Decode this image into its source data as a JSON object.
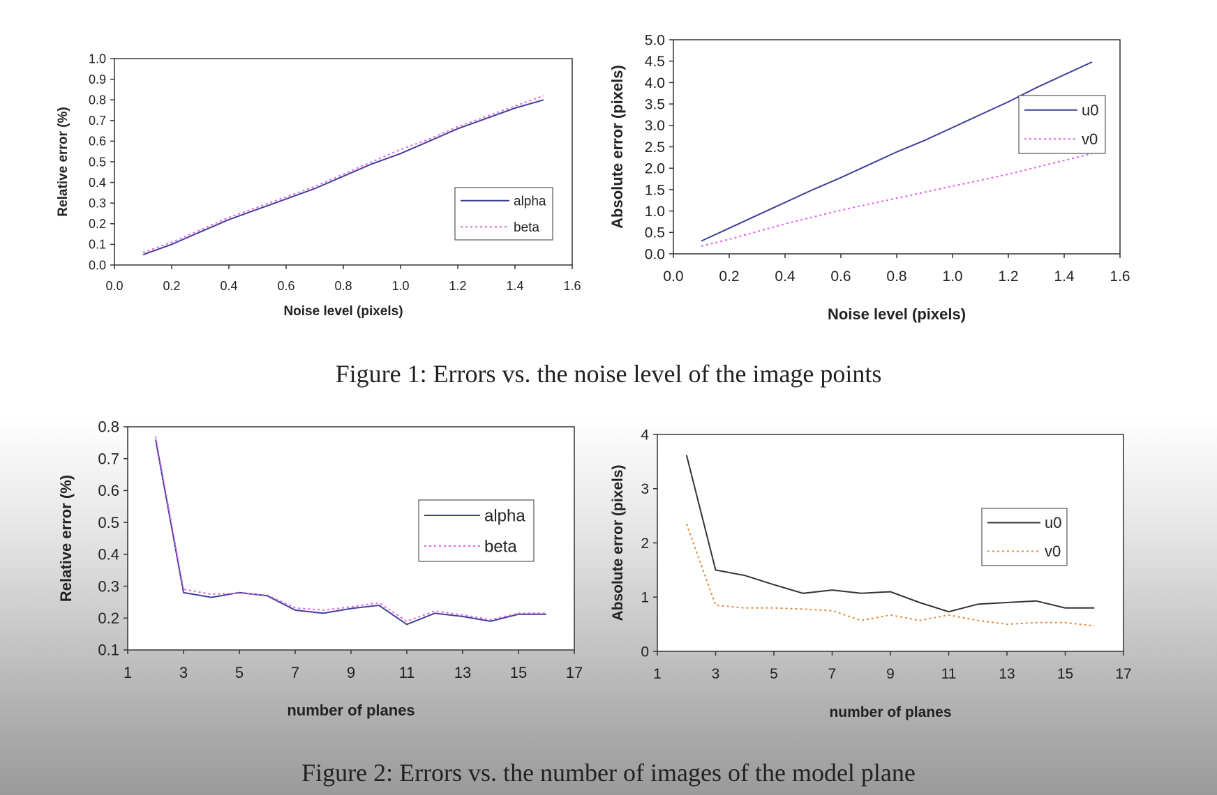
{
  "captions": {
    "figure1": "Figure 1: Errors vs. the noise level of the image points",
    "figure2": "Figure 2: Errors vs. the number of images of the model plane"
  },
  "chart_data": [
    {
      "type": "line",
      "xlabel": "Noise level (pixels)",
      "ylabel": "Relative error (%)",
      "xlim": [
        0,
        1.6
      ],
      "xticks": [
        0.0,
        0.2,
        0.4,
        0.6,
        0.8,
        1.0,
        1.2,
        1.4,
        1.6
      ],
      "xtick_labels": [
        "0.0",
        "0.2",
        "0.4",
        "0.6",
        "0.8",
        "1.0",
        "1.2",
        "1.4",
        "1.6"
      ],
      "ylim": [
        0,
        1.0
      ],
      "yticks": [
        0.0,
        0.1,
        0.2,
        0.3,
        0.4,
        0.5,
        0.6,
        0.7,
        0.8,
        0.9,
        1.0
      ],
      "ytick_labels": [
        "0.0",
        "0.1",
        "0.2",
        "0.3",
        "0.4",
        "0.5",
        "0.6",
        "0.7",
        "0.8",
        "0.9",
        "1.0"
      ],
      "legend": "lower-right",
      "x": [
        0.1,
        0.2,
        0.3,
        0.4,
        0.5,
        0.6,
        0.7,
        0.8,
        0.9,
        1.0,
        1.1,
        1.2,
        1.3,
        1.4,
        1.5
      ],
      "series": [
        {
          "name": "alpha",
          "color": "#3f3f9a",
          "dash": "solid",
          "values": [
            0.05,
            0.1,
            0.16,
            0.22,
            0.27,
            0.32,
            0.37,
            0.43,
            0.49,
            0.54,
            0.6,
            0.66,
            0.71,
            0.76,
            0.8
          ]
        },
        {
          "name": "beta",
          "color": "#e35fe6",
          "dash": "dotted",
          "values": [
            0.06,
            0.11,
            0.17,
            0.23,
            0.28,
            0.33,
            0.38,
            0.44,
            0.5,
            0.56,
            0.61,
            0.67,
            0.72,
            0.77,
            0.82
          ]
        }
      ]
    },
    {
      "type": "line",
      "xlabel": "Noise level (pixels)",
      "ylabel": "Absolute error (pixels)",
      "xlim": [
        0,
        1.6
      ],
      "xticks": [
        0.0,
        0.2,
        0.4,
        0.6,
        0.8,
        1.0,
        1.2,
        1.4,
        1.6
      ],
      "xtick_labels": [
        "0.0",
        "0.2",
        "0.4",
        "0.6",
        "0.8",
        "1.0",
        "1.2",
        "1.4",
        "1.6"
      ],
      "ylim": [
        0,
        5.0
      ],
      "yticks": [
        0.0,
        0.5,
        1.0,
        1.5,
        2.0,
        2.5,
        3.0,
        3.5,
        4.0,
        4.5,
        5.0
      ],
      "ytick_labels": [
        "0.0",
        "0.5",
        "1.0",
        "1.5",
        "2.0",
        "2.5",
        "3.0",
        "3.5",
        "4.0",
        "4.5",
        "5.0"
      ],
      "legend": "top-right",
      "x": [
        0.1,
        0.2,
        0.3,
        0.4,
        0.5,
        0.6,
        0.7,
        0.8,
        0.9,
        1.0,
        1.1,
        1.2,
        1.3,
        1.4,
        1.5
      ],
      "series": [
        {
          "name": "u0",
          "color": "#3f3f9a",
          "dash": "solid",
          "values": [
            0.3,
            0.6,
            0.9,
            1.2,
            1.5,
            1.78,
            2.08,
            2.38,
            2.65,
            2.95,
            3.25,
            3.55,
            3.88,
            4.18,
            4.48
          ]
        },
        {
          "name": "v0",
          "color": "#e35fe6",
          "dash": "dotted",
          "values": [
            0.18,
            0.34,
            0.52,
            0.7,
            0.86,
            1.02,
            1.16,
            1.3,
            1.44,
            1.58,
            1.72,
            1.86,
            2.02,
            2.18,
            2.34
          ]
        }
      ]
    },
    {
      "type": "line",
      "xlabel": "number of planes",
      "ylabel": "Relative error (%)",
      "xlim": [
        1,
        17
      ],
      "xticks": [
        1,
        3,
        5,
        7,
        9,
        11,
        13,
        15,
        17
      ],
      "xtick_labels": [
        "1",
        "3",
        "5",
        "7",
        "9",
        "11",
        "13",
        "15",
        "17"
      ],
      "ylim": [
        0.1,
        0.8
      ],
      "yticks": [
        0.1,
        0.2,
        0.3,
        0.4,
        0.5,
        0.6,
        0.7,
        0.8
      ],
      "ytick_labels": [
        "0.1",
        "0.2",
        "0.3",
        "0.4",
        "0.5",
        "0.6",
        "0.7",
        "0.8"
      ],
      "legend": "top-right",
      "x": [
        2,
        3,
        4,
        5,
        6,
        7,
        8,
        9,
        10,
        11,
        12,
        13,
        14,
        15,
        16
      ],
      "series": [
        {
          "name": "alpha",
          "color": "#3f3f9a",
          "dash": "solid",
          "values": [
            0.76,
            0.28,
            0.265,
            0.28,
            0.27,
            0.225,
            0.215,
            0.23,
            0.24,
            0.18,
            0.215,
            0.205,
            0.19,
            0.212,
            0.212
          ]
        },
        {
          "name": "beta",
          "color": "#e35fe6",
          "dash": "dotted",
          "values": [
            0.77,
            0.29,
            0.275,
            0.278,
            0.272,
            0.232,
            0.225,
            0.235,
            0.248,
            0.19,
            0.222,
            0.21,
            0.195,
            0.215,
            0.215
          ]
        }
      ]
    },
    {
      "type": "line",
      "xlabel": "number of planes",
      "ylabel": "Absolute error (pixels)",
      "xlim": [
        1,
        17
      ],
      "xticks": [
        1,
        3,
        5,
        7,
        9,
        11,
        13,
        15,
        17
      ],
      "xtick_labels": [
        "1",
        "3",
        "5",
        "7",
        "9",
        "11",
        "13",
        "15",
        "17"
      ],
      "ylim": [
        0,
        4
      ],
      "yticks": [
        0,
        1,
        2,
        3,
        4
      ],
      "ytick_labels": [
        "0",
        "1",
        "2",
        "3",
        "4"
      ],
      "legend": "right",
      "x": [
        2,
        3,
        4,
        5,
        6,
        7,
        8,
        9,
        10,
        11,
        12,
        13,
        14,
        15,
        16
      ],
      "series": [
        {
          "name": "u0",
          "color": "#333333",
          "dash": "solid",
          "values": [
            3.62,
            1.5,
            1.4,
            1.23,
            1.07,
            1.13,
            1.07,
            1.1,
            0.9,
            0.73,
            0.87,
            0.9,
            0.93,
            0.8,
            0.8
          ]
        },
        {
          "name": "v0",
          "color": "#e08a3c",
          "dash": "dotted",
          "values": [
            2.35,
            0.85,
            0.8,
            0.8,
            0.78,
            0.75,
            0.57,
            0.67,
            0.57,
            0.67,
            0.57,
            0.5,
            0.53,
            0.53,
            0.47
          ]
        }
      ]
    }
  ]
}
